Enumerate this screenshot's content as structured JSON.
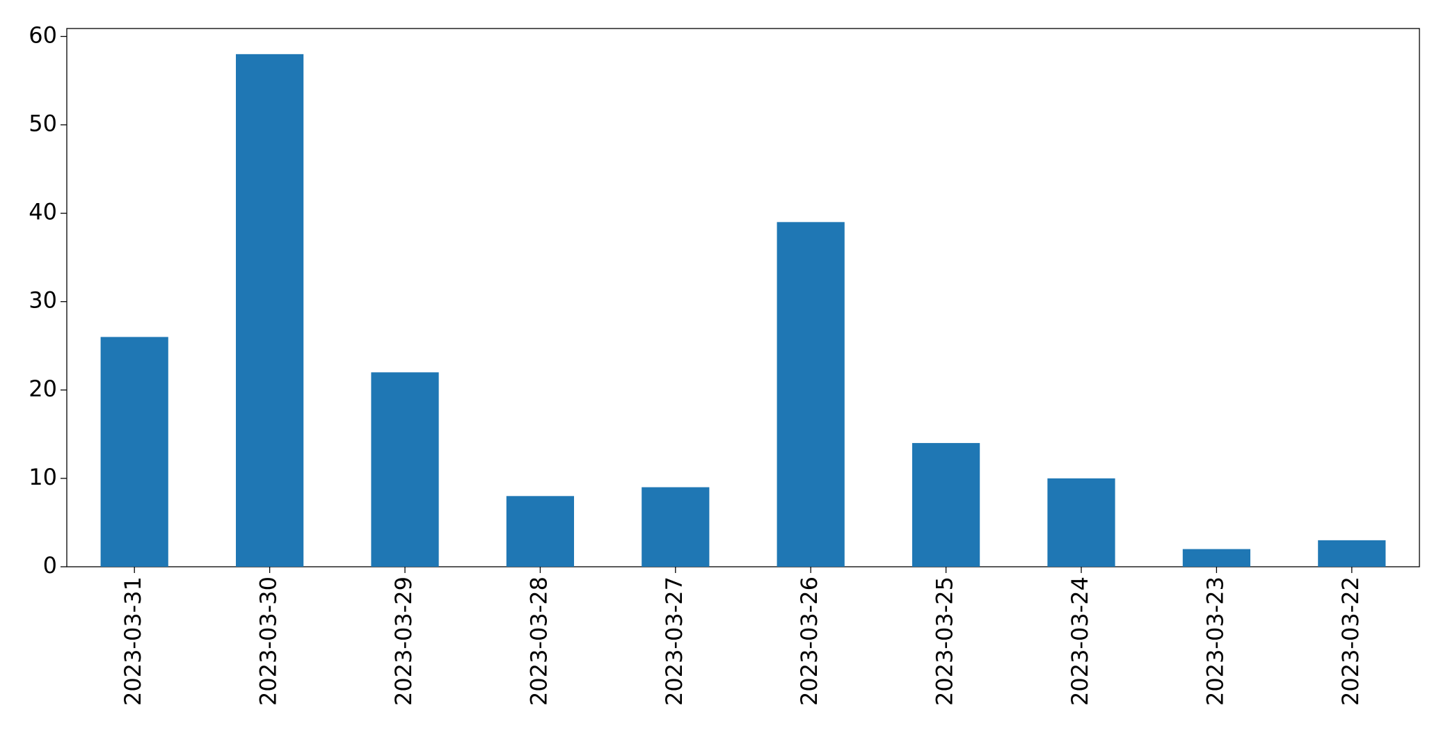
{
  "chart_data": {
    "type": "bar",
    "categories": [
      "2023-03-31",
      "2023-03-30",
      "2023-03-29",
      "2023-03-28",
      "2023-03-27",
      "2023-03-26",
      "2023-03-25",
      "2023-03-24",
      "2023-03-23",
      "2023-03-22"
    ],
    "values": [
      26,
      58,
      22,
      8,
      9,
      39,
      14,
      10,
      2,
      3
    ],
    "color": "#1f77b4",
    "ylim": [
      0,
      60.9
    ],
    "yticks": [
      0,
      10,
      20,
      30,
      40,
      50,
      60
    ],
    "grid": false
  }
}
